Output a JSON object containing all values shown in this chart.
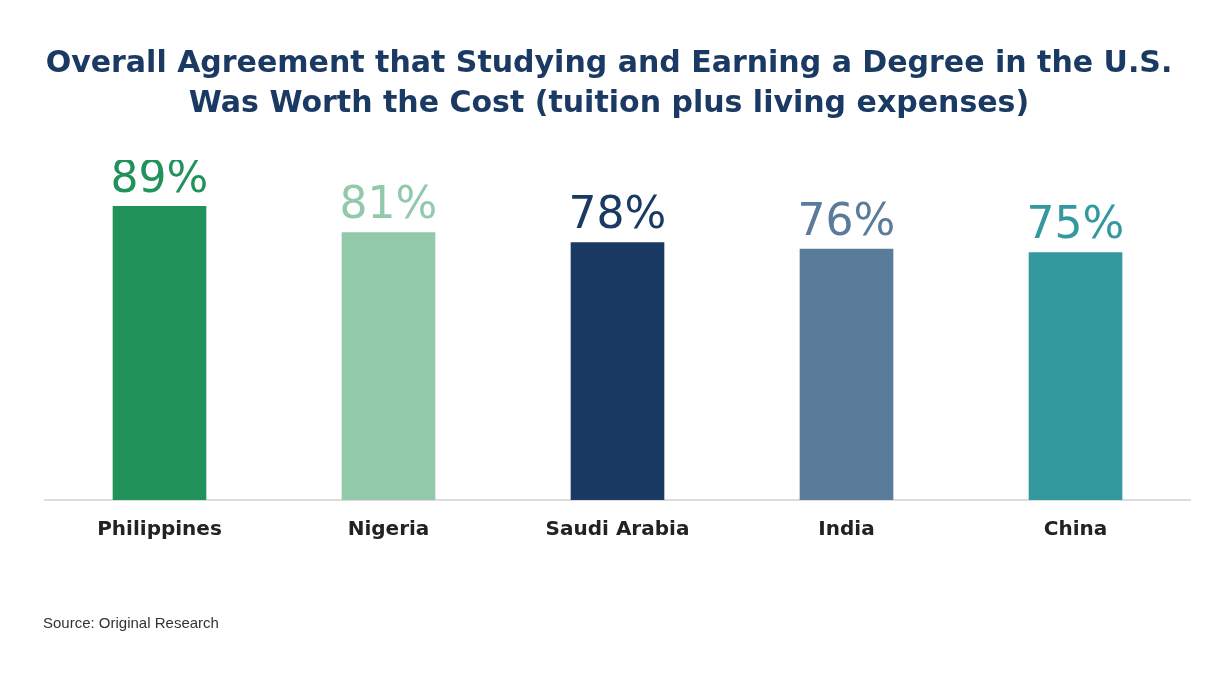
{
  "chart_data": {
    "type": "bar",
    "title": "Overall Agreement that Studying and Earning a Degree in the U.S. Was Worth the Cost (tuition plus living expenses)",
    "categories": [
      "Philippines",
      "Nigeria",
      "Saudi Arabia",
      "India",
      "China"
    ],
    "values": [
      89,
      81,
      78,
      76,
      75
    ],
    "colors": [
      "#21925a",
      "#93c9ab",
      "#1b3a63",
      "#5b7b9a",
      "#33999f"
    ],
    "value_labels": [
      "89%",
      "81%",
      "78%",
      "76%",
      "75%"
    ],
    "legend": false,
    "grid": false,
    "annotations": [
      "Source: Original Research"
    ]
  }
}
